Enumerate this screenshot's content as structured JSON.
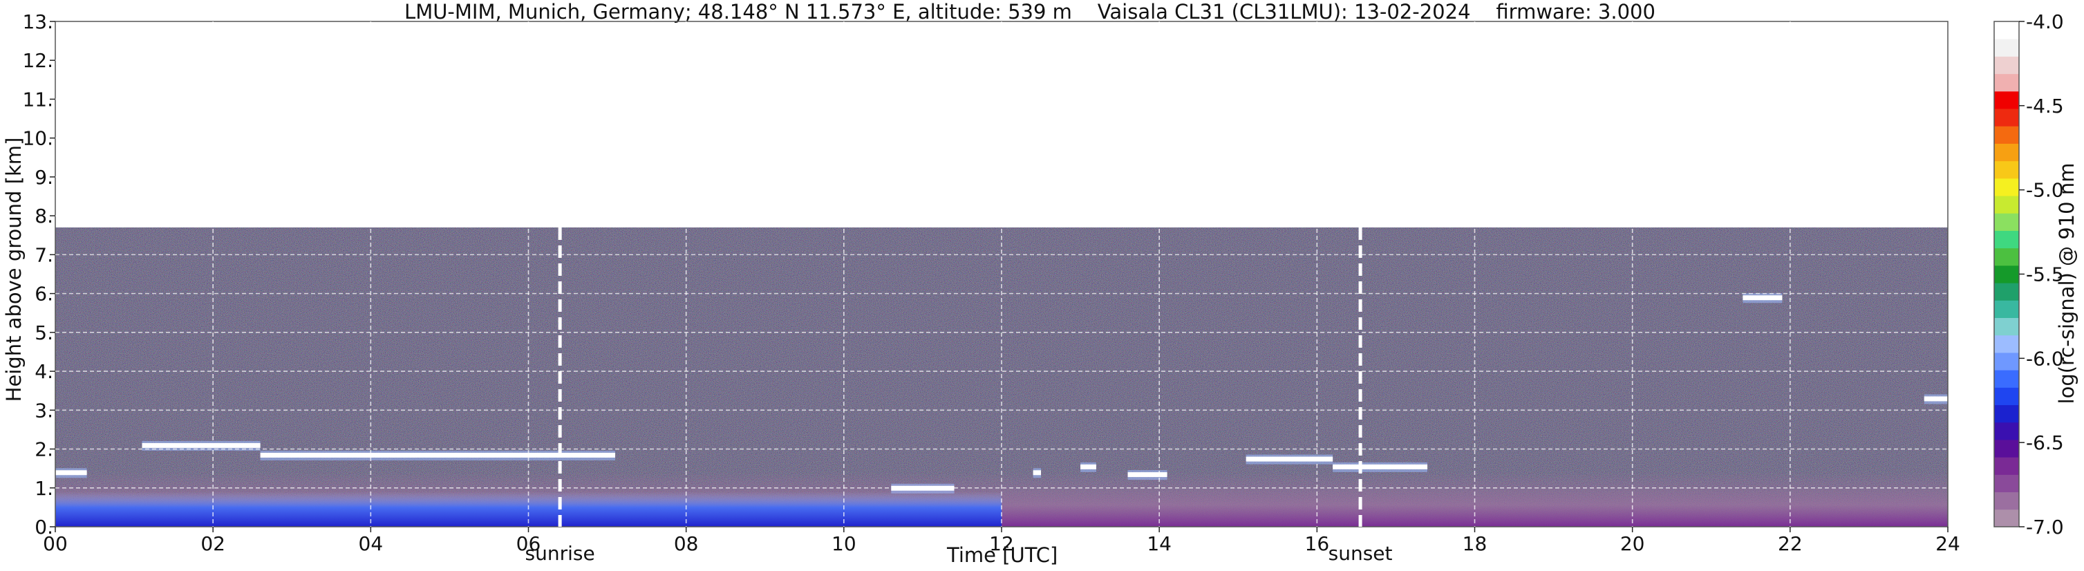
{
  "chart_data": {
    "type": "heatmap",
    "title": "LMU-MIM, Munich, Germany; 48.148° N 11.573° E, altitude: 539 m    Vaisala CL31 (CL31LMU): 13-02-2024    firmware: 3.000",
    "xlabel": "Time [UTC]",
    "ylabel": "Height above ground [km]",
    "xlim": [
      0,
      24
    ],
    "ylim": [
      0,
      13
    ],
    "x_ticks": [
      "00",
      "02",
      "04",
      "06",
      "08",
      "10",
      "12",
      "14",
      "16",
      "18",
      "20",
      "22",
      "24"
    ],
    "y_ticks": [
      "0.",
      "1.",
      "2.",
      "3.",
      "4.",
      "5.",
      "6.",
      "7.",
      "8.",
      "9.",
      "10.",
      "11.",
      "12.",
      "13."
    ],
    "grid": true,
    "measurement_top_km": 7.7,
    "annotations": [
      {
        "label": "sunrise",
        "x": 6.4
      },
      {
        "label": "sunset",
        "x": 16.55
      }
    ],
    "cloud_layers": [
      {
        "x_start": 0.0,
        "x_end": 0.4,
        "height_km": 1.4
      },
      {
        "x_start": 1.1,
        "x_end": 2.6,
        "height_km": 2.1
      },
      {
        "x_start": 2.6,
        "x_end": 7.1,
        "height_km": 1.85
      },
      {
        "x_start": 10.6,
        "x_end": 11.4,
        "height_km": 1.0
      },
      {
        "x_start": 12.4,
        "x_end": 12.5,
        "height_km": 1.4
      },
      {
        "x_start": 13.0,
        "x_end": 13.2,
        "height_km": 1.55
      },
      {
        "x_start": 13.6,
        "x_end": 14.1,
        "height_km": 1.35
      },
      {
        "x_start": 15.1,
        "x_end": 16.2,
        "height_km": 1.75
      },
      {
        "x_start": 16.2,
        "x_end": 17.4,
        "height_km": 1.55
      },
      {
        "x_start": 21.4,
        "x_end": 21.9,
        "height_km": 5.9
      },
      {
        "x_start": 23.7,
        "x_end": 24.0,
        "height_km": 3.3
      }
    ],
    "colorbar": {
      "label": "log(rc-signal) @ 910 nm",
      "range": [
        -7.0,
        -4.0
      ],
      "tick_labels": [
        "-4.0",
        "-4.5",
        "-5.0",
        "-5.5",
        "-6.0",
        "-6.5",
        "-7.0"
      ],
      "tick_values": [
        -4.0,
        -4.5,
        -5.0,
        -5.5,
        -6.0,
        -6.5,
        -7.0
      ],
      "colors": [
        "#ad8faa",
        "#9b6fa0",
        "#8a4a9a",
        "#7a2a95",
        "#5a0f9a",
        "#3a10b0",
        "#1b22cf",
        "#1f45f0",
        "#3a6cff",
        "#6f98ff",
        "#9cbcff",
        "#7fd0d0",
        "#39b8a0",
        "#1fa06a",
        "#159a2a",
        "#4cc040",
        "#3fd880",
        "#8be060",
        "#c8ea30",
        "#f5f020",
        "#f8c818",
        "#f7a012",
        "#f46a10",
        "#ee2a10",
        "#f00000",
        "#f0b0b0",
        "#eed0d0",
        "#f2f2f2",
        "#ffffff"
      ]
    }
  }
}
